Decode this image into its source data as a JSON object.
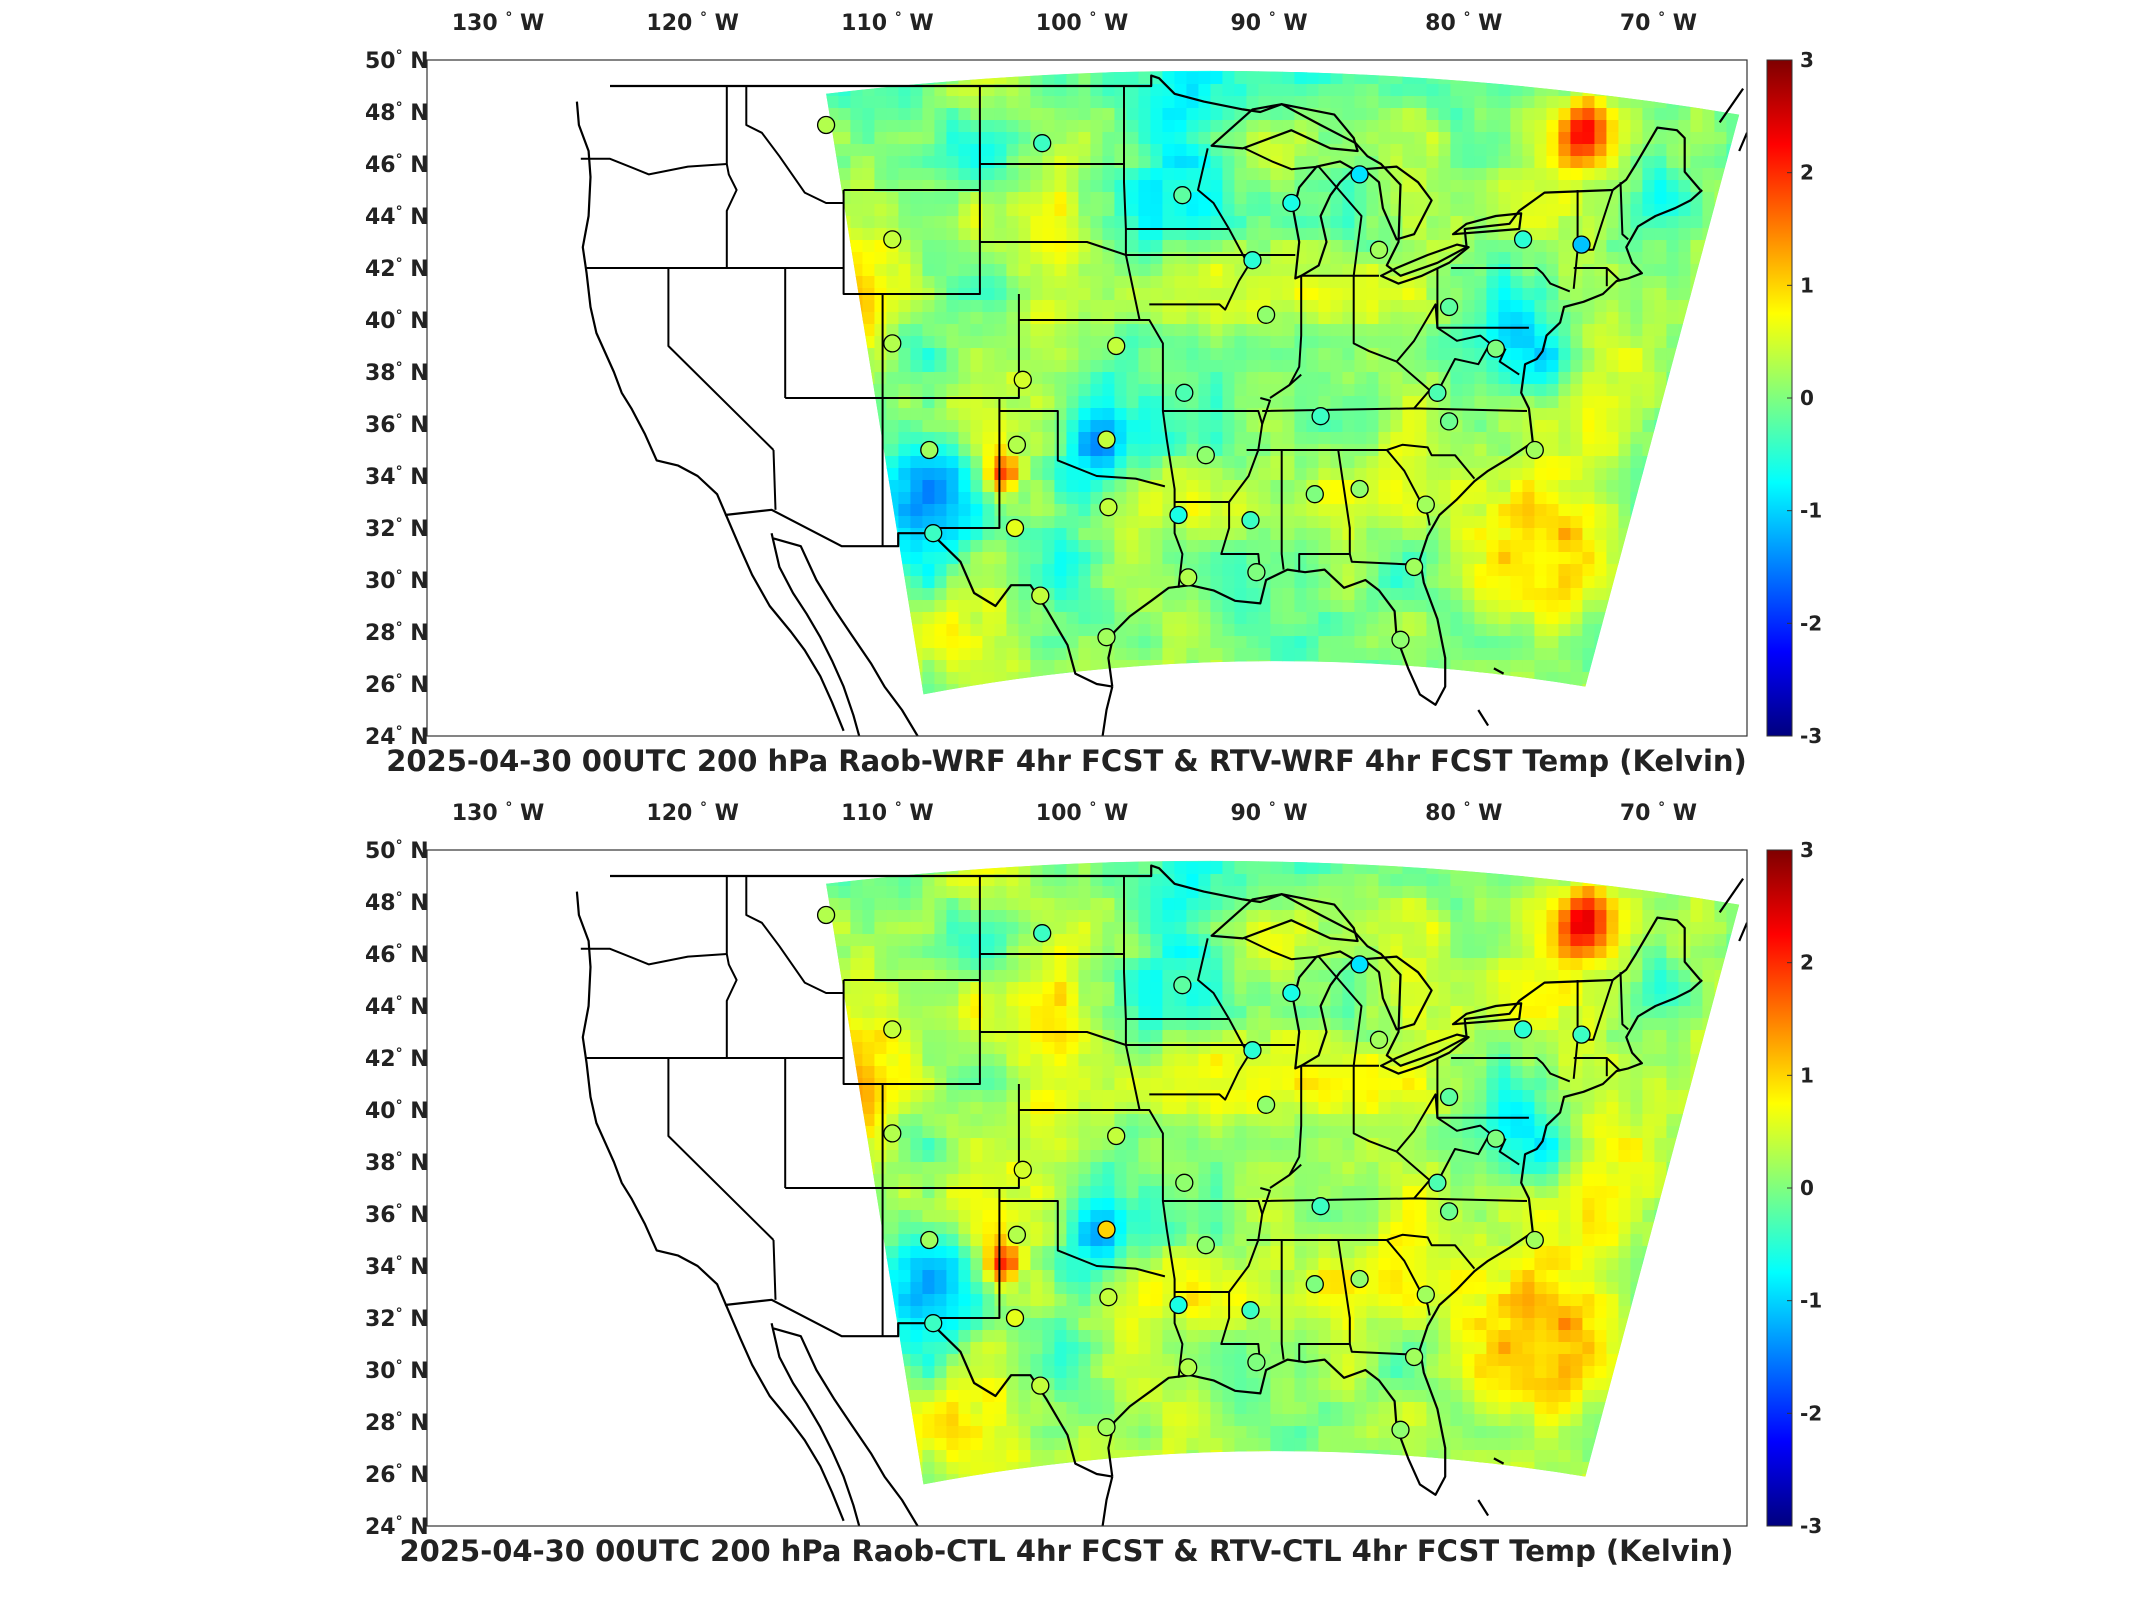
{
  "panels": [
    {
      "title": "2025-04-30 00UTC 200 hPa Raob-WRF 4hr FCST & RTV-WRF 4hr FCST Temp (Kelvin)",
      "variant": "wrf"
    },
    {
      "title": "2025-04-30 00UTC 200 hPa Raob-CTL 4hr FCST & RTV-CTL 4hr FCST Temp (Kelvin)",
      "variant": "ctl"
    }
  ],
  "axes": {
    "lon_labels": [
      "130",
      "120",
      "110",
      "100",
      "90",
      "80",
      "70"
    ],
    "lon_suffix": "W",
    "lat_labels": [
      "50",
      "48",
      "46",
      "44",
      "42",
      "40",
      "38",
      "36",
      "34",
      "32",
      "30",
      "28",
      "26",
      "24"
    ],
    "lat_suffix": "N",
    "degree_symbol": "°"
  },
  "colorbar": {
    "ticks": [
      "3",
      "2",
      "1",
      "0",
      "-1",
      "-2",
      "-3"
    ],
    "colors": [
      "#00007f",
      "#0000ff",
      "#007fff",
      "#00ffff",
      "#7fff7f",
      "#ffff00",
      "#ff7f00",
      "#ff0000",
      "#7f0000"
    ],
    "range": [
      -3,
      3
    ]
  },
  "colors": {
    "field_base": "#6fe58a",
    "land_fill": "#ffffff",
    "boundary": "#000000"
  },
  "stations": [
    {
      "lon": -111.9,
      "lat": 47.5
    },
    {
      "lon": -100.8,
      "lat": 46.8
    },
    {
      "lon": -93.6,
      "lat": 44.8
    },
    {
      "lon": -88.0,
      "lat": 44.5
    },
    {
      "lon": -84.5,
      "lat": 45.6
    },
    {
      "lon": -83.5,
      "lat": 42.7
    },
    {
      "lon": -76.1,
      "lat": 43.1
    },
    {
      "lon": -73.1,
      "lat": 42.9
    },
    {
      "lon": -108.5,
      "lat": 43.1
    },
    {
      "lon": -108.5,
      "lat": 39.1
    },
    {
      "lon": -101.8,
      "lat": 37.7
    },
    {
      "lon": -97.0,
      "lat": 39.0
    },
    {
      "lon": -93.5,
      "lat": 37.2
    },
    {
      "lon": -90.0,
      "lat": 42.3
    },
    {
      "lon": -89.3,
      "lat": 40.2
    },
    {
      "lon": -79.9,
      "lat": 40.5
    },
    {
      "lon": -77.5,
      "lat": 38.9
    },
    {
      "lon": -80.5,
      "lat": 37.2
    },
    {
      "lon": -86.5,
      "lat": 36.3
    },
    {
      "lon": -79.9,
      "lat": 36.1
    },
    {
      "lon": -75.5,
      "lat": 35.0
    },
    {
      "lon": -106.6,
      "lat": 35.0
    },
    {
      "lon": -102.1,
      "lat": 35.2
    },
    {
      "lon": -97.5,
      "lat": 35.4
    },
    {
      "lon": -92.4,
      "lat": 34.8
    },
    {
      "lon": -106.4,
      "lat": 31.8
    },
    {
      "lon": -102.2,
      "lat": 32.0
    },
    {
      "lon": -97.4,
      "lat": 32.8
    },
    {
      "lon": -93.8,
      "lat": 32.5
    },
    {
      "lon": -90.1,
      "lat": 32.3
    },
    {
      "lon": -86.8,
      "lat": 33.3
    },
    {
      "lon": -84.5,
      "lat": 33.5
    },
    {
      "lon": -81.1,
      "lat": 32.9
    },
    {
      "lon": -100.9,
      "lat": 29.4
    },
    {
      "lon": -97.5,
      "lat": 27.8
    },
    {
      "lon": -93.3,
      "lat": 30.1
    },
    {
      "lon": -89.8,
      "lat": 30.3
    },
    {
      "lon": -81.7,
      "lat": 30.5
    },
    {
      "lon": -82.4,
      "lat": 27.7
    }
  ],
  "station_values": {
    "wrf": [
      0.3,
      -0.4,
      -0.2,
      -0.6,
      -0.9,
      0.2,
      -0.5,
      -1.1,
      0.4,
      0.3,
      0.5,
      0.4,
      -0.3,
      -0.5,
      0.1,
      -0.2,
      0.0,
      -0.3,
      -0.4,
      -0.1,
      0.2,
      0.2,
      0.3,
      0.4,
      0.1,
      -0.4,
      0.6,
      0.4,
      -0.6,
      -0.4,
      0.0,
      0.1,
      0.2,
      0.4,
      0.2,
      0.3,
      0.0,
      0.2,
      0.1
    ],
    "ctl": [
      0.3,
      -0.4,
      -0.2,
      -0.6,
      -0.9,
      0.2,
      -0.5,
      -0.4,
      0.4,
      0.3,
      0.5,
      0.4,
      0.1,
      -0.5,
      0.1,
      -0.2,
      0.0,
      -0.3,
      -0.4,
      -0.1,
      0.2,
      0.2,
      0.3,
      1.0,
      0.1,
      -0.4,
      0.6,
      0.4,
      -0.6,
      -0.4,
      0.0,
      0.1,
      0.2,
      0.4,
      0.2,
      0.3,
      0.0,
      0.2,
      0.1
    ]
  }
}
